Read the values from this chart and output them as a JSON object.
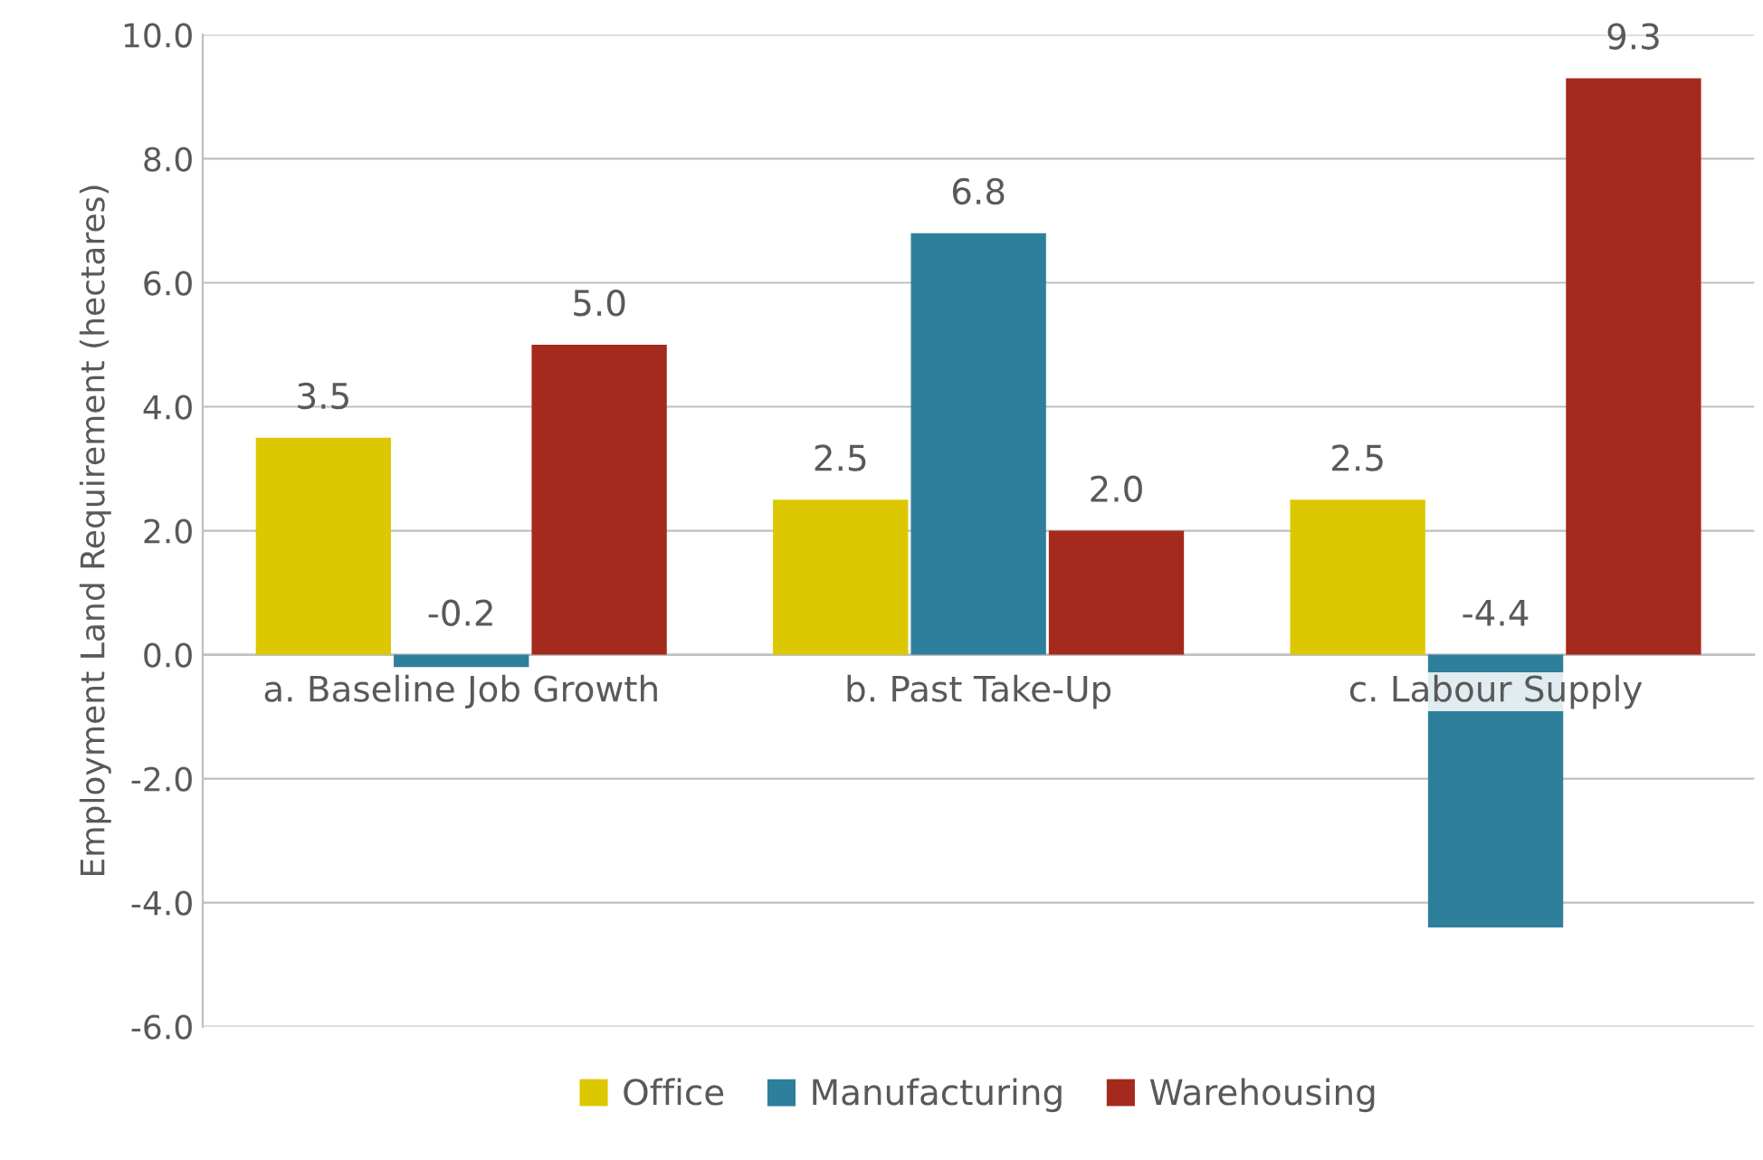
{
  "chart_data": {
    "type": "bar",
    "ylabel": "Employment Land Requirement (hectares)",
    "categories": [
      "a. Baseline Job Growth",
      "b. Past Take-Up",
      "c. Labour Supply"
    ],
    "series": [
      {
        "name": "Office",
        "color": "#dcc800",
        "values": [
          3.5,
          2.5,
          2.5
        ],
        "value_labels": [
          "3.5",
          "2.5",
          "2.5"
        ]
      },
      {
        "name": "Manufacturing",
        "color": "#2e7f9b",
        "values": [
          -0.2,
          6.8,
          -4.4
        ],
        "value_labels": [
          "-0.2",
          "6.8",
          "-4.4"
        ]
      },
      {
        "name": "Warehousing",
        "color": "#a52a1e",
        "values": [
          5.0,
          2.0,
          9.3
        ],
        "value_labels": [
          "5.0",
          "2.0",
          "9.3"
        ]
      }
    ],
    "ylim": [
      -6,
      10
    ],
    "yticks": [
      {
        "value": -6,
        "label": "-6.0"
      },
      {
        "value": -4,
        "label": "-4.0"
      },
      {
        "value": -2,
        "label": "-2.0"
      },
      {
        "value": 0,
        "label": "0.0"
      },
      {
        "value": 2,
        "label": "2.0"
      },
      {
        "value": 4,
        "label": "4.0"
      },
      {
        "value": 6,
        "label": "6.0"
      },
      {
        "value": 8,
        "label": "8.0"
      },
      {
        "value": 10,
        "label": "10.0"
      }
    ],
    "grid": "y",
    "legend": "bottom"
  }
}
